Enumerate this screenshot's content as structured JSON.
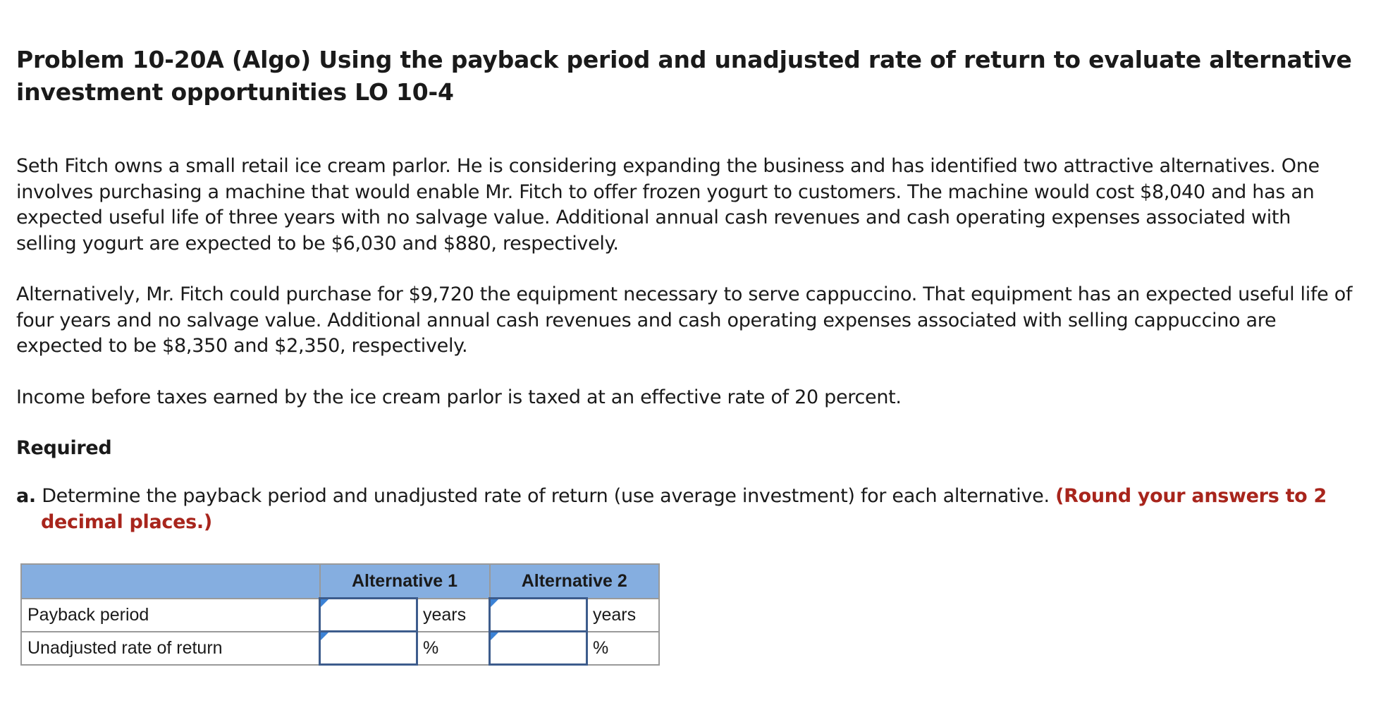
{
  "problem": {
    "title": "Problem 10-20A (Algo) Using the payback period and unadjusted rate of return to evaluate alternative investment opportunities LO 10-4",
    "paragraphs": [
      "Seth Fitch owns a small retail ice cream parlor. He is considering expanding the business and has identified two attractive alternatives. One involves purchasing a machine that would enable Mr. Fitch to offer frozen yogurt to customers. The machine would cost $8,040 and has an expected useful life of three years with no salvage value. Additional annual cash revenues and cash operating expenses associated with selling yogurt are expected to be $6,030 and $880, respectively.",
      "Alternatively, Mr. Fitch could purchase for $9,720 the equipment necessary to serve cappuccino. That equipment has an expected useful life of four years and no salvage value. Additional annual cash revenues and cash operating expenses associated with selling cappuccino are expected to be $8,350 and $2,350, respectively.",
      "Income before taxes earned by the ice cream parlor is taxed at an effective rate of 20 percent."
    ],
    "required_label": "Required",
    "part_a": {
      "letter": "a.",
      "text": "Determine the payback period and unadjusted rate of return (use average investment) for each alternative.",
      "note": "(Round your answers to 2 decimal places.)"
    }
  },
  "table": {
    "headers": [
      "",
      "Alternative 1",
      "Alternative 2"
    ],
    "rows": [
      {
        "label": "Payback period",
        "alt1_value": "",
        "alt1_unit": "years",
        "alt2_value": "",
        "alt2_unit": "years"
      },
      {
        "label": "Unadjusted rate of return",
        "alt1_value": "",
        "alt1_unit": "%",
        "alt2_value": "",
        "alt2_unit": "%"
      }
    ]
  },
  "colors": {
    "header_bg": "#85aee0",
    "note_red": "#a8251c",
    "input_border": "#3d5c8c",
    "marker_blue": "#3b82d6"
  }
}
